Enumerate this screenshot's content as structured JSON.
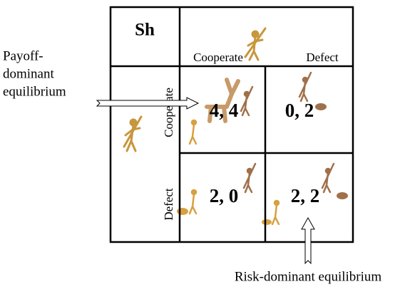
{
  "matrix": {
    "title": "Sh",
    "columns": [
      "Cooperate",
      "Defect"
    ],
    "rows": [
      "Cooperate",
      "Defect"
    ],
    "cells": [
      [
        "4, 4",
        "0, 2"
      ],
      [
        "2, 0",
        "2, 2"
      ]
    ]
  },
  "annotations": {
    "payoff_dominant": [
      "Payoff-",
      "dominant",
      "equilibrium"
    ],
    "risk_dominant": "Risk-dominant equilibrium"
  }
}
